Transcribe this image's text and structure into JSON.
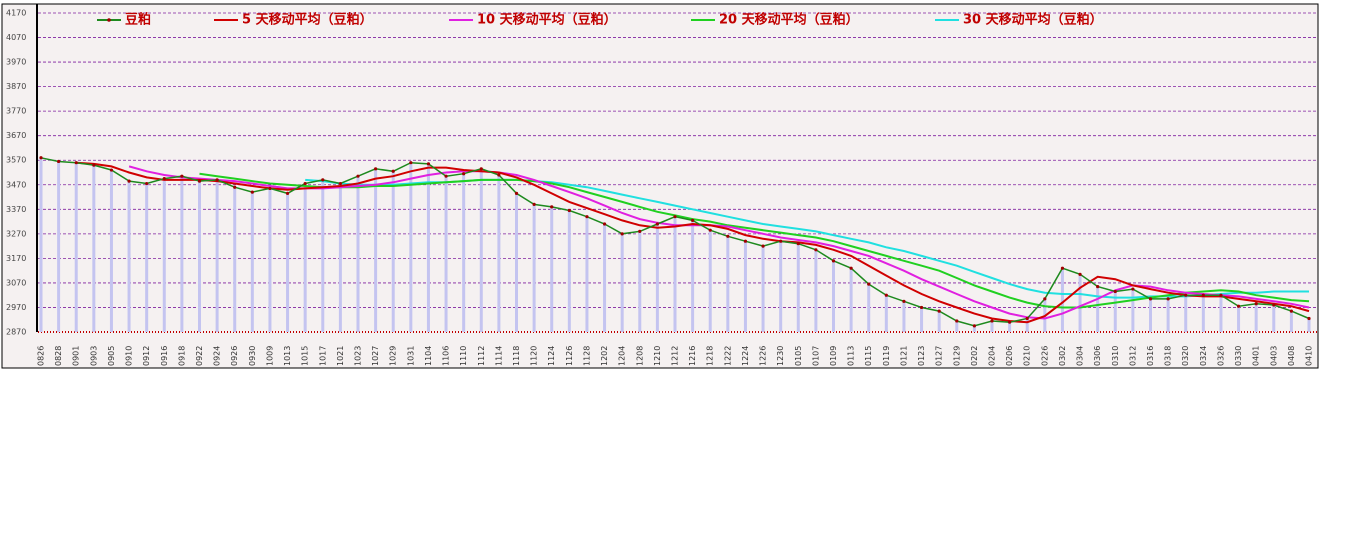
{
  "chart_data": {
    "type": "line",
    "categories": [
      "0826",
      "0828",
      "0901",
      "0903",
      "0905",
      "0910",
      "0912",
      "0916",
      "0918",
      "0922",
      "0924",
      "0926",
      "0930",
      "1009",
      "1013",
      "1015",
      "1017",
      "1021",
      "1023",
      "1027",
      "1029",
      "1031",
      "1104",
      "1106",
      "1110",
      "1112",
      "1114",
      "1118",
      "1120",
      "1124",
      "1126",
      "1128",
      "1202",
      "1204",
      "1208",
      "1210",
      "1212",
      "1216",
      "1218",
      "1222",
      "1224",
      "1226",
      "1230",
      "0105",
      "0107",
      "0109",
      "0113",
      "0115",
      "0119",
      "0121",
      "0123",
      "0127",
      "0129",
      "0202",
      "0204",
      "0206",
      "0210",
      "0226",
      "0302",
      "0304",
      "0306",
      "0310",
      "0312",
      "0316",
      "0318",
      "0320",
      "0324",
      "0326",
      "0330",
      "0401",
      "0403",
      "0408",
      "0410"
    ],
    "series": [
      {
        "name": "豆粕",
        "color": "#1e8a1e",
        "values": [
          3580,
          3565,
          3560,
          3550,
          3530,
          3485,
          3475,
          3495,
          3505,
          3485,
          3490,
          3460,
          3440,
          3455,
          3435,
          3475,
          3490,
          3475,
          3505,
          3535,
          3525,
          3560,
          3555,
          3505,
          3515,
          3535,
          3510,
          3435,
          3390,
          3380,
          3365,
          3340,
          3310,
          3270,
          3280,
          3310,
          3340,
          3325,
          3285,
          3260,
          3240,
          3220,
          3240,
          3230,
          3205,
          3160,
          3130,
          3065,
          3020,
          2995,
          2970,
          2955,
          2915,
          2895,
          2915,
          2910,
          2925,
          3005,
          3130,
          3105,
          3055,
          3035,
          3045,
          3005,
          3005,
          3020,
          3020,
          3020,
          2975,
          2985,
          2980,
          2955,
          2925
        ]
      },
      {
        "name": "5 天移动平均（豆粕）",
        "color": "#d00000",
        "values": [
          null,
          null,
          3560,
          3555,
          3545,
          3520,
          3500,
          3490,
          3490,
          3490,
          3485,
          3475,
          3465,
          3455,
          3450,
          3455,
          3460,
          3465,
          3475,
          3495,
          3505,
          3525,
          3540,
          3540,
          3530,
          3525,
          3520,
          3500,
          3470,
          3435,
          3400,
          3375,
          3350,
          3325,
          3305,
          3295,
          3300,
          3310,
          3305,
          3290,
          3265,
          3250,
          3240,
          3235,
          3225,
          3205,
          3180,
          3140,
          3100,
          3060,
          3025,
          2995,
          2970,
          2945,
          2925,
          2915,
          2910,
          2935,
          2990,
          3050,
          3095,
          3085,
          3060,
          3045,
          3030,
          3020,
          3015,
          3015,
          3005,
          2995,
          2985,
          2975,
          2955
        ]
      },
      {
        "name": "10 天移动平均（豆粕）",
        "color": "#e020e0",
        "values": [
          null,
          null,
          null,
          null,
          null,
          3545,
          3525,
          3510,
          3500,
          3495,
          3490,
          3485,
          3475,
          3465,
          3455,
          3455,
          3455,
          3460,
          3465,
          3470,
          3480,
          3495,
          3510,
          3520,
          3525,
          3525,
          3520,
          3510,
          3490,
          3465,
          3440,
          3415,
          3385,
          3355,
          3330,
          3315,
          3305,
          3305,
          3305,
          3300,
          3285,
          3270,
          3255,
          3245,
          3235,
          3220,
          3200,
          3180,
          3150,
          3120,
          3085,
          3055,
          3025,
          2995,
          2970,
          2945,
          2930,
          2925,
          2945,
          2975,
          3005,
          3040,
          3060,
          3055,
          3040,
          3030,
          3025,
          3020,
          3015,
          3005,
          2995,
          2985,
          2970
        ]
      },
      {
        "name": "20 天移动平均（豆粕）",
        "color": "#20d020",
        "values": [
          null,
          null,
          null,
          null,
          null,
          null,
          null,
          null,
          null,
          3515,
          3505,
          3495,
          3485,
          3475,
          3470,
          3465,
          3460,
          3460,
          3460,
          3465,
          3465,
          3470,
          3475,
          3480,
          3485,
          3490,
          3490,
          3490,
          3485,
          3475,
          3460,
          3440,
          3420,
          3400,
          3380,
          3360,
          3345,
          3330,
          3320,
          3305,
          3295,
          3285,
          3275,
          3265,
          3255,
          3240,
          3220,
          3200,
          3180,
          3160,
          3140,
          3120,
          3090,
          3060,
          3035,
          3010,
          2990,
          2975,
          2970,
          2970,
          2980,
          2990,
          3000,
          3010,
          3020,
          3030,
          3035,
          3040,
          3035,
          3020,
          3010,
          3000,
          2995
        ]
      },
      {
        "name": "30 天移动平均（豆粕）",
        "color": "#20e0e0",
        "values": [
          null,
          null,
          null,
          null,
          null,
          null,
          null,
          null,
          null,
          null,
          null,
          null,
          null,
          null,
          null,
          3490,
          3485,
          3475,
          3470,
          3470,
          3470,
          3475,
          3480,
          3480,
          3485,
          3490,
          3490,
          3490,
          3485,
          3480,
          3470,
          3460,
          3445,
          3430,
          3415,
          3400,
          3385,
          3370,
          3355,
          3340,
          3325,
          3310,
          3300,
          3290,
          3280,
          3265,
          3250,
          3235,
          3215,
          3200,
          3180,
          3160,
          3140,
          3115,
          3090,
          3065,
          3045,
          3030,
          3025,
          3025,
          3015,
          3010,
          3010,
          3015,
          3015,
          3015,
          3020,
          3025,
          3030,
          3030,
          3035,
          3035,
          3035
        ]
      }
    ],
    "ylim": [
      2870,
      4170
    ],
    "yticks": [
      2870,
      2970,
      3070,
      3170,
      3270,
      3370,
      3470,
      3570,
      3670,
      3770,
      3870,
      3970,
      4070,
      4170
    ],
    "grid": true,
    "legend": "top"
  }
}
